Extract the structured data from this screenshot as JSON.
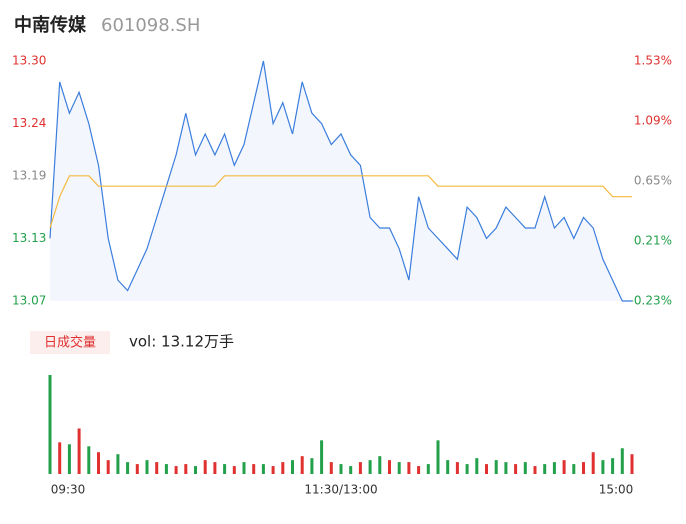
{
  "header": {
    "name": "中南传媒",
    "code": "601098.SH"
  },
  "volume_box": {
    "tab": "日成交量",
    "summary": "vol: 13.12万手"
  },
  "chart_data": [
    {
      "type": "line",
      "x": [
        0,
        4,
        8,
        12,
        16,
        20,
        24,
        28,
        32,
        36,
        40,
        44,
        48,
        52,
        56,
        60,
        64,
        68,
        72,
        76,
        80,
        84,
        88,
        92,
        96,
        100,
        104,
        108,
        112,
        116,
        120,
        124,
        128,
        132,
        136,
        140,
        144,
        148,
        152,
        156,
        160,
        164,
        168,
        172,
        176,
        180,
        184,
        188,
        192,
        196,
        200,
        204,
        208,
        212,
        216,
        220,
        224,
        228,
        232,
        236,
        240
      ],
      "series": [
        {
          "name": "price",
          "color": "#3b7ddd",
          "values": [
            13.13,
            13.28,
            13.25,
            13.27,
            13.24,
            13.2,
            13.13,
            13.09,
            13.08,
            13.1,
            13.12,
            13.15,
            13.18,
            13.21,
            13.25,
            13.21,
            13.23,
            13.21,
            13.23,
            13.2,
            13.22,
            13.26,
            13.3,
            13.24,
            13.26,
            13.23,
            13.28,
            13.25,
            13.24,
            13.22,
            13.23,
            13.21,
            13.2,
            13.15,
            13.14,
            13.14,
            13.12,
            13.09,
            13.17,
            13.14,
            13.13,
            13.12,
            13.11,
            13.16,
            13.15,
            13.13,
            13.14,
            13.16,
            13.15,
            13.14,
            13.14,
            13.17,
            13.14,
            13.15,
            13.13,
            13.15,
            13.14,
            13.11,
            13.09,
            13.07,
            13.07
          ]
        },
        {
          "name": "average",
          "color": "#f5b83d",
          "values": [
            13.14,
            13.17,
            13.19,
            13.19,
            13.19,
            13.18,
            13.18,
            13.18,
            13.18,
            13.18,
            13.18,
            13.18,
            13.18,
            13.18,
            13.18,
            13.18,
            13.18,
            13.18,
            13.19,
            13.19,
            13.19,
            13.19,
            13.19,
            13.19,
            13.19,
            13.19,
            13.19,
            13.19,
            13.19,
            13.19,
            13.19,
            13.19,
            13.19,
            13.19,
            13.19,
            13.19,
            13.19,
            13.19,
            13.19,
            13.19,
            13.18,
            13.18,
            13.18,
            13.18,
            13.18,
            13.18,
            13.18,
            13.18,
            13.18,
            13.18,
            13.18,
            13.18,
            13.18,
            13.18,
            13.18,
            13.18,
            13.18,
            13.18,
            13.17,
            13.17,
            13.17
          ]
        }
      ],
      "xlim": [
        0,
        240
      ],
      "ylim": [
        13.07,
        13.3
      ],
      "yticks": [
        {
          "value": 13.3,
          "label": "13.30"
        },
        13.24,
        13.19,
        13.13,
        13.07
      ],
      "ytick_colors": [
        "#e03030",
        "#e03030",
        "#888888",
        "#22a04a",
        "#22a04a"
      ],
      "y2lim": [
        -0.23,
        1.53
      ],
      "y2ticks": [
        {
          "value": 1.53,
          "label": "1.53%"
        },
        {
          "value": 1.09,
          "label": "1.09%"
        },
        {
          "value": 0.65,
          "label": "0.65%"
        },
        {
          "value": 0.21,
          "label": "0.21%"
        },
        {
          "value": -0.23,
          "label": "-0.23%"
        }
      ],
      "y2tick_colors": [
        "#e03030",
        "#e03030",
        "#888888",
        "#22a04a",
        "#22a04a"
      ]
    },
    {
      "type": "bar",
      "x": [
        0,
        4,
        8,
        12,
        16,
        20,
        24,
        28,
        32,
        36,
        40,
        44,
        48,
        52,
        56,
        60,
        64,
        68,
        72,
        76,
        80,
        84,
        88,
        92,
        96,
        100,
        104,
        108,
        112,
        116,
        120,
        124,
        128,
        132,
        136,
        140,
        144,
        148,
        152,
        156,
        160,
        164,
        168,
        172,
        176,
        180,
        184,
        188,
        192,
        196,
        200,
        204,
        208,
        212,
        216,
        220,
        224,
        228,
        232,
        236,
        240
      ],
      "values": [
        100,
        32,
        30,
        46,
        28,
        22,
        14,
        20,
        12,
        10,
        14,
        12,
        10,
        8,
        10,
        8,
        14,
        12,
        10,
        8,
        12,
        10,
        10,
        8,
        12,
        14,
        18,
        16,
        34,
        12,
        10,
        8,
        12,
        14,
        18,
        14,
        12,
        12,
        8,
        10,
        34,
        14,
        12,
        10,
        16,
        10,
        14,
        12,
        10,
        12,
        8,
        10,
        12,
        14,
        10,
        12,
        22,
        14,
        16,
        26,
        20
      ],
      "colors": [
        "#22a04a",
        "#e03030",
        "#22a04a",
        "#e03030",
        "#22a04a",
        "#e03030",
        "#e03030",
        "#22a04a",
        "#22a04a",
        "#e03030",
        "#22a04a",
        "#e03030",
        "#22a04a",
        "#e03030",
        "#e03030",
        "#22a04a",
        "#e03030",
        "#e03030",
        "#22a04a",
        "#e03030",
        "#22a04a",
        "#e03030",
        "#22a04a",
        "#e03030",
        "#e03030",
        "#22a04a",
        "#e03030",
        "#22a04a",
        "#22a04a",
        "#e03030",
        "#22a04a",
        "#22a04a",
        "#e03030",
        "#22a04a",
        "#22a04a",
        "#e03030",
        "#22a04a",
        "#e03030",
        "#e03030",
        "#22a04a",
        "#22a04a",
        "#22a04a",
        "#e03030",
        "#22a04a",
        "#22a04a",
        "#e03030",
        "#22a04a",
        "#22a04a",
        "#e03030",
        "#22a04a",
        "#e03030",
        "#22a04a",
        "#22a04a",
        "#e03030",
        "#22a04a",
        "#e03030",
        "#e03030",
        "#22a04a",
        "#22a04a",
        "#22a04a",
        "#e03030"
      ],
      "xlim": [
        0,
        240
      ],
      "ylim": [
        0,
        100
      ],
      "xticks": [
        {
          "value": 0,
          "label": "09:30"
        },
        {
          "value": 120,
          "label": "11:30/13:00"
        },
        {
          "value": 240,
          "label": "15:00"
        }
      ]
    }
  ]
}
